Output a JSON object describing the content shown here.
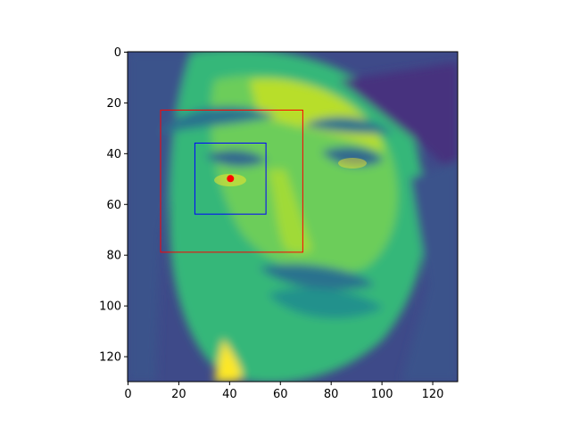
{
  "chart_data": {
    "type": "heatmap",
    "title": "",
    "xlabel": "",
    "ylabel": "",
    "xlim": [
      0,
      130
    ],
    "ylim": [
      130,
      0
    ],
    "y_inverted": true,
    "x_ticks": [
      0,
      20,
      40,
      60,
      80,
      100,
      120
    ],
    "y_ticks": [
      0,
      20,
      40,
      60,
      80,
      100,
      120
    ],
    "colormap": "viridis",
    "image_content": "grayscale face photo rendered with viridis colormap",
    "rectangles": [
      {
        "name": "outer box",
        "color": "#ff0000",
        "x0": 13,
        "y0": 23,
        "x1": 69,
        "y1": 79
      },
      {
        "name": "inner box",
        "color": "#0000ff",
        "x0": 26.5,
        "y0": 36,
        "x1": 54.5,
        "y1": 64
      }
    ],
    "points": [
      {
        "name": "marker",
        "color": "#ff0000",
        "x": 40.5,
        "y": 50
      }
    ],
    "grid": false,
    "legend": "none"
  },
  "colors": {
    "axis": "#000000",
    "background": "#ffffff"
  }
}
